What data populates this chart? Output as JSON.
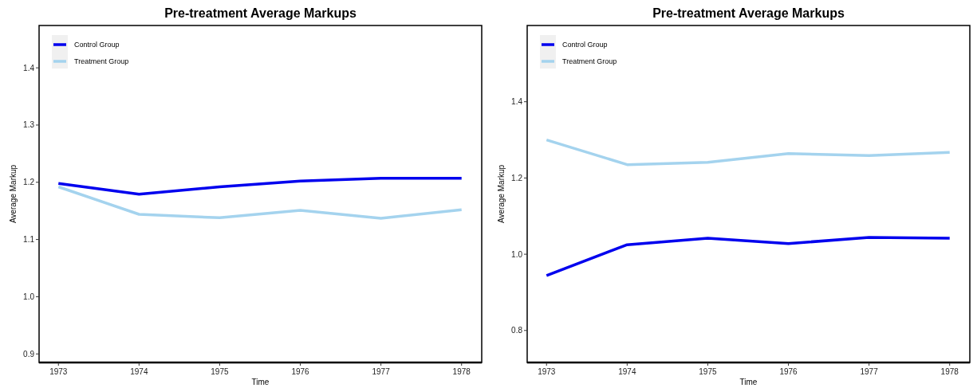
{
  "chart_data": [
    {
      "type": "line",
      "title": "Pre-treatment Average Markups",
      "xlabel": "Time",
      "ylabel": "Average Markup",
      "x": [
        1973,
        1974,
        1975,
        1976,
        1977,
        1978
      ],
      "xlim": [
        1972.76,
        1978.25
      ],
      "xticks": [
        1973,
        1974,
        1975,
        1976,
        1977,
        1978
      ],
      "ylim": [
        0.885,
        1.474
      ],
      "yticks": [
        0.9,
        {
          "value": 1,
          "label": "1.0"
        },
        1.1,
        1.2,
        1.3,
        1.4
      ],
      "grid": false,
      "legend": "top left",
      "marker": "none",
      "line_style": "solid",
      "series": [
        {
          "name": "Control Group",
          "color": "#0000ee",
          "values": [
            1.198,
            1.179,
            1.192,
            1.202,
            1.207,
            1.207
          ]
        },
        {
          "name": "Treatment Group",
          "color": "#a4d3ee",
          "values": [
            1.192,
            1.144,
            1.138,
            1.151,
            1.137,
            1.152
          ]
        }
      ]
    },
    {
      "type": "line",
      "title": "Pre-treatment Average Markups",
      "xlabel": "Time",
      "ylabel": "Average Markup",
      "x": [
        1973,
        1974,
        1975,
        1976,
        1977,
        1978
      ],
      "xlim": [
        1972.76,
        1978.25
      ],
      "xticks": [
        1973,
        1974,
        1975,
        1976,
        1977,
        1978
      ],
      "ylim": [
        0.716,
        1.6
      ],
      "yticks": [
        0.8,
        {
          "value": 1,
          "label": "1.0"
        },
        1.2,
        1.4
      ],
      "grid": false,
      "legend": "top left",
      "marker": "none",
      "line_style": "solid",
      "series": [
        {
          "name": "Control Group",
          "color": "#0000ee",
          "values": [
            0.944,
            1.025,
            1.042,
            1.028,
            1.044,
            1.042
          ]
        },
        {
          "name": "Treatment Group",
          "color": "#a4d3ee",
          "values": [
            1.3,
            1.235,
            1.241,
            1.264,
            1.259,
            1.267
          ]
        }
      ]
    }
  ]
}
